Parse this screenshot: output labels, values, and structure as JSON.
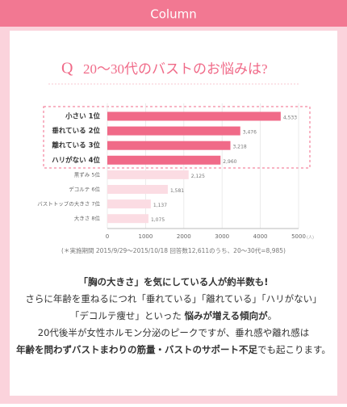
{
  "header": {
    "title": "Column"
  },
  "chart_data": {
    "type": "hbar",
    "q_mark": "Q",
    "title": "20〜30代のバストのお悩みは?",
    "categories": [
      "小さい 1位",
      "垂れている 2位",
      "離れている 3位",
      "ハリがない 4位",
      "黒ずみ 5位",
      "デコルテ 6位",
      "バストトップの大きさ 7位",
      "大きさ 8位"
    ],
    "values": [
      4533,
      3476,
      3218,
      2960,
      2125,
      1581,
      1137,
      1075
    ],
    "value_labels": [
      "4,533",
      "3,476",
      "3,218",
      "2,960",
      "2,125",
      "1,581",
      "1,137",
      "1,075"
    ],
    "colors": [
      "#f06a88",
      "#f06a88",
      "#f06a88",
      "#f06a88",
      "#fbdce3",
      "#fbdce3",
      "#fbdce3",
      "#fbdce3"
    ],
    "highlighted": [
      true,
      true,
      true,
      true,
      false,
      false,
      false,
      false
    ],
    "xlim": [
      0,
      5000
    ],
    "xticks": [
      0,
      1000,
      2000,
      3000,
      4000,
      5000
    ],
    "x_unit": "(人)",
    "note": "(＊実施期間 2015/9/29〜2015/10/18 回答数12,611のうち、20〜30代=8,985)"
  },
  "body": {
    "lines": [
      [
        {
          "text": "「胸の大きさ」を気にしている人が約半数も!",
          "bold": true
        }
      ],
      [
        {
          "text": "さらに年齢を重ねるにつれ「垂れている」「離れている」「ハリがない」",
          "bold": false
        }
      ],
      [
        {
          "text": "「デコルテ痩せ」といった ",
          "bold": false
        },
        {
          "text": "悩みが増える傾向が",
          "bold": true
        },
        {
          "text": "。",
          "bold": false
        }
      ],
      [
        {
          "text": "20代後半が女性ホルモン分泌のピークですが、垂れ感や離れ感は",
          "bold": false
        }
      ],
      [
        {
          "text": "年齢を問わずバストまわりの筋量・バストのサポート不足",
          "bold": true
        },
        {
          "text": "でも起こります。",
          "bold": false
        }
      ]
    ]
  }
}
